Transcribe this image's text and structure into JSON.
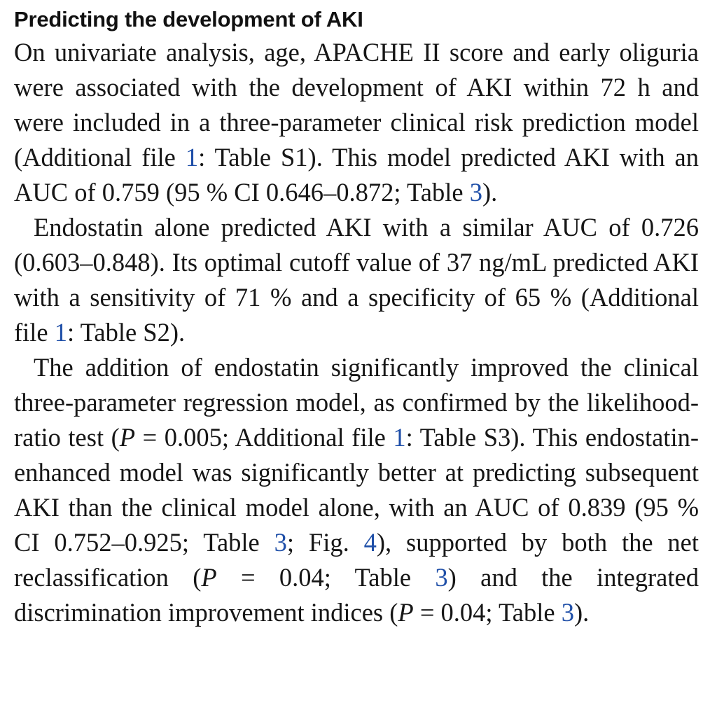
{
  "section": {
    "heading": "Predicting the development of AKI"
  },
  "paragraphs": [
    {
      "segments": [
        {
          "t": "On univariate analysis, age, APACHE II score and early oliguria were associated with the development of AKI within 72 h and were included in a three-parameter clini­cal risk prediction model (Additional file "
        },
        {
          "t": "1",
          "ref": true
        },
        {
          "t": ": Table S1). This model predicted AKI with an AUC of 0.759 (95 % CI 0.646–0.872; Table "
        },
        {
          "t": "3",
          "ref": true
        },
        {
          "t": ")."
        }
      ]
    },
    {
      "segments": [
        {
          "t": "Endostatin alone predicted AKI with a similar AUC of 0.726 (0.603–0.848). Its optimal cutoff value of 37 ng/mL predicted AKI with a sensitivity of 71 % and a specificity of 65 % (Additional file "
        },
        {
          "t": "1",
          "ref": true
        },
        {
          "t": ": Table S2)."
        }
      ]
    },
    {
      "segments": [
        {
          "t": "The addition of endostatin significantly improved the clinical three-parameter regression model, as confirmed by the likelihood-ratio test ("
        },
        {
          "t": "P",
          "italic": true
        },
        {
          "t": " = 0.005; Additional file "
        },
        {
          "t": "1",
          "ref": true
        },
        {
          "t": ": Table S3). This endostatin-enhanced model was sig­nificantly better at predicting subsequent AKI than the clinical model alone, with an AUC of 0.839 (95 % CI 0.752–0.925; Table "
        },
        {
          "t": "3",
          "ref": true
        },
        {
          "t": "; Fig. "
        },
        {
          "t": "4",
          "ref": true
        },
        {
          "t": "), supported by both the net reclassification ("
        },
        {
          "t": "P",
          "italic": true
        },
        {
          "t": " = 0.04; Table "
        },
        {
          "t": "3",
          "ref": true
        },
        {
          "t": ") and the integrated discrimination improvement indices ("
        },
        {
          "t": "P",
          "italic": true
        },
        {
          "t": " = 0.04; Table "
        },
        {
          "t": "3",
          "ref": true
        },
        {
          "t": ")."
        }
      ]
    }
  ],
  "colors": {
    "text": "#161616",
    "link": "#1f4fa8"
  }
}
